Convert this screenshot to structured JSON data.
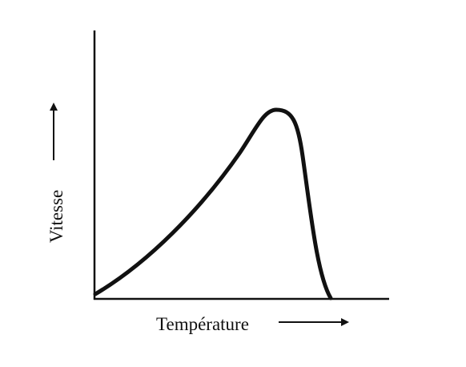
{
  "axes": {
    "y_label": "Vitesse",
    "x_label": "Température"
  }
}
